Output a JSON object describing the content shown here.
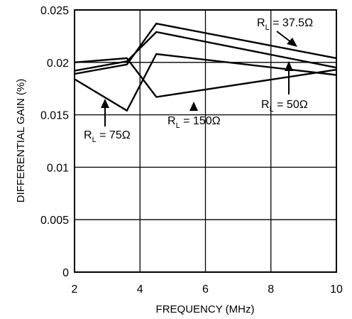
{
  "chart_data": {
    "type": "line",
    "xlabel": "FREQUENCY (MHz)",
    "ylabel": "DIFFERENTIAL GAIN (%)",
    "xlim": [
      2,
      10
    ],
    "ylim": [
      0,
      0.025
    ],
    "x_ticks": [
      "2",
      "4",
      "6",
      "8",
      "10"
    ],
    "y_ticks": [
      "0",
      "0.005",
      "0.01",
      "0.015",
      "0.02",
      "0.025"
    ],
    "grid": true,
    "series": [
      {
        "name": "RL = 37.5Ω",
        "x": [
          2,
          3.6,
          4.5,
          10
        ],
        "y": [
          0.0189,
          0.0198,
          0.0237,
          0.0204
        ]
      },
      {
        "name": "RL = 50Ω",
        "x": [
          2,
          3.6,
          4.5,
          10
        ],
        "y": [
          0.0192,
          0.0201,
          0.0229,
          0.0195
        ]
      },
      {
        "name": "RL = 150Ω",
        "x": [
          2,
          3.6,
          4.5,
          10
        ],
        "y": [
          0.02,
          0.0204,
          0.0167,
          0.0193
        ]
      },
      {
        "name": "RL = 75Ω",
        "x": [
          2,
          3.6,
          4.5,
          10
        ],
        "y": [
          0.0184,
          0.0154,
          0.0208,
          0.0188
        ]
      }
    ],
    "annotations": [
      {
        "id": "ann-375",
        "main": "R",
        "sub": "L",
        "rest": " = 37.5Ω"
      },
      {
        "id": "ann-50",
        "main": "R",
        "sub": "L",
        "rest": " = 50Ω"
      },
      {
        "id": "ann-150",
        "main": "R",
        "sub": "L",
        "rest": " = 150Ω"
      },
      {
        "id": "ann-75",
        "main": "R",
        "sub": "L",
        "rest": " = 75Ω"
      }
    ]
  }
}
